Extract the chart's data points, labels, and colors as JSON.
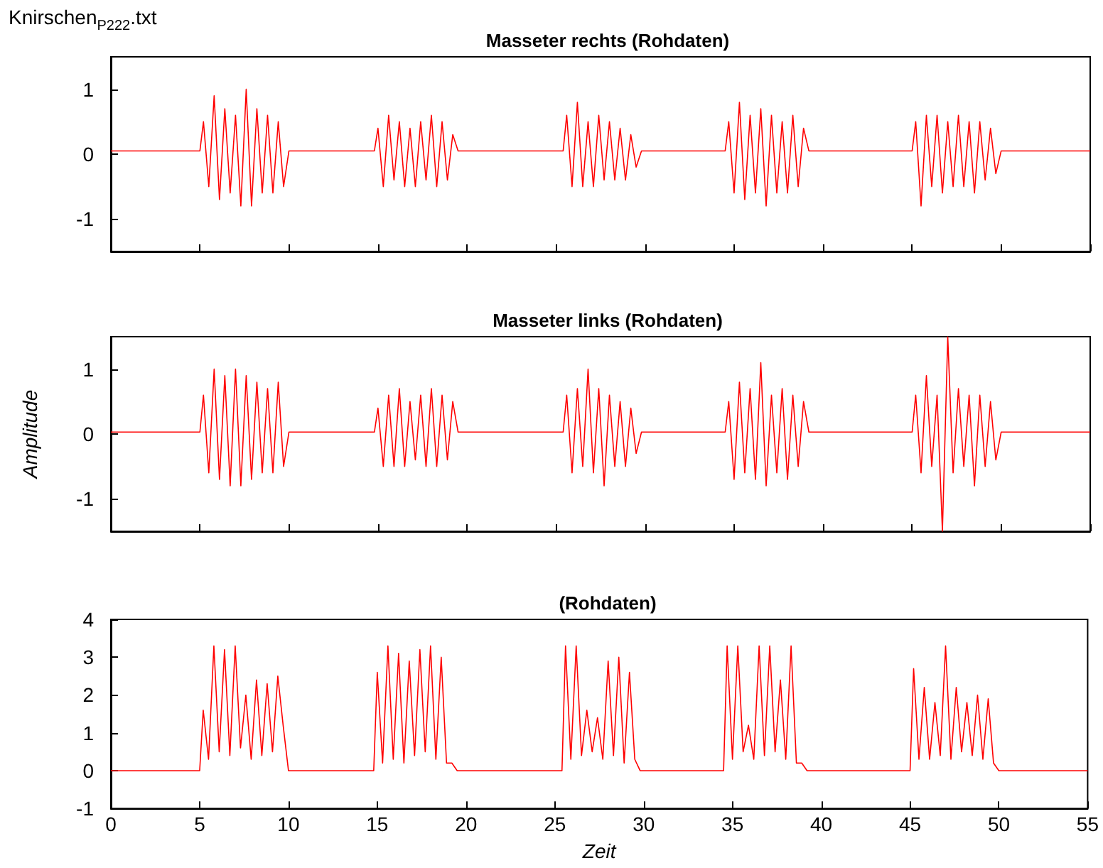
{
  "chart_data": [
    {
      "type": "line",
      "title": "Masseter rechts (Rohdaten)",
      "annotations": [
        "Knirschen$_{P222}$.txt"
      ],
      "xlim": [
        0,
        55
      ],
      "xticks": [
        0,
        5,
        10,
        15,
        20,
        25,
        30,
        35,
        40,
        45,
        50,
        55
      ],
      "ylim": [
        -1.5,
        1.5
      ],
      "yticks": [
        -1,
        0,
        1
      ],
      "tick_labels": "y",
      "series": [
        {
          "color": "#ff0000",
          "x": [
            0,
            2.5,
            5,
            5.2,
            5.5,
            5.8,
            6.1,
            6.4,
            6.7,
            7.0,
            7.3,
            7.6,
            7.9,
            8.2,
            8.5,
            8.8,
            9.1,
            9.4,
            9.7,
            10,
            12.5,
            14.8,
            15.0,
            15.3,
            15.6,
            15.9,
            16.2,
            16.5,
            16.8,
            17.1,
            17.4,
            17.7,
            18.0,
            18.3,
            18.6,
            18.9,
            19.2,
            19.5,
            22.5,
            25.4,
            25.6,
            25.9,
            26.2,
            26.5,
            26.8,
            27.1,
            27.4,
            27.7,
            28.0,
            28.3,
            28.6,
            28.9,
            29.2,
            29.5,
            29.8,
            32,
            34.5,
            34.7,
            35.0,
            35.3,
            35.6,
            35.9,
            36.2,
            36.5,
            36.8,
            37.1,
            37.4,
            37.7,
            38.0,
            38.3,
            38.6,
            38.9,
            39.2,
            42,
            45.0,
            45.2,
            45.5,
            45.8,
            46.1,
            46.4,
            46.7,
            47.0,
            47.3,
            47.6,
            47.9,
            48.2,
            48.5,
            48.8,
            49.1,
            49.4,
            49.7,
            50,
            55
          ],
          "values": [
            0.05,
            0.05,
            0.05,
            0.5,
            -0.5,
            0.9,
            -0.7,
            0.7,
            -0.6,
            0.6,
            -0.8,
            1.0,
            -0.8,
            0.7,
            -0.6,
            0.6,
            -0.6,
            0.5,
            -0.5,
            0.05,
            0.05,
            0.05,
            0.4,
            -0.5,
            0.6,
            -0.4,
            0.5,
            -0.5,
            0.4,
            -0.5,
            0.5,
            -0.4,
            0.6,
            -0.5,
            0.5,
            -0.4,
            0.3,
            0.05,
            0.05,
            0.05,
            0.6,
            -0.5,
            0.8,
            -0.5,
            0.5,
            -0.5,
            0.6,
            -0.4,
            0.5,
            -0.4,
            0.4,
            -0.4,
            0.3,
            -0.2,
            0.05,
            0.05,
            0.05,
            0.5,
            -0.6,
            0.8,
            -0.7,
            0.6,
            -0.6,
            0.7,
            -0.8,
            0.6,
            -0.6,
            0.5,
            -0.6,
            0.6,
            -0.5,
            0.4,
            0.05,
            0.05,
            0.05,
            0.5,
            -0.8,
            0.6,
            -0.5,
            0.6,
            -0.6,
            0.5,
            -0.5,
            0.6,
            -0.5,
            0.5,
            -0.6,
            0.5,
            -0.4,
            0.4,
            -0.3,
            0.05,
            0.05
          ]
        }
      ]
    },
    {
      "type": "line",
      "title": "Masseter links (Rohdaten)",
      "ylabel": "Amplitude",
      "xlim": [
        0,
        55
      ],
      "xticks": [
        0,
        5,
        10,
        15,
        20,
        25,
        30,
        35,
        40,
        45,
        50,
        55
      ],
      "ylim": [
        -1.5,
        1.5
      ],
      "yticks": [
        -1,
        0,
        1
      ],
      "tick_labels": "y",
      "series": [
        {
          "color": "#ff0000",
          "x": [
            0,
            2.5,
            5,
            5.2,
            5.5,
            5.8,
            6.1,
            6.4,
            6.7,
            7.0,
            7.3,
            7.6,
            7.9,
            8.2,
            8.5,
            8.8,
            9.1,
            9.4,
            9.7,
            10,
            12.5,
            14.8,
            15.0,
            15.3,
            15.6,
            15.9,
            16.2,
            16.5,
            16.8,
            17.1,
            17.4,
            17.7,
            18.0,
            18.3,
            18.6,
            18.9,
            19.2,
            19.5,
            22.5,
            25.4,
            25.6,
            25.9,
            26.2,
            26.5,
            26.8,
            27.1,
            27.4,
            27.7,
            28.0,
            28.3,
            28.6,
            28.9,
            29.2,
            29.5,
            29.8,
            32,
            34.5,
            34.7,
            35.0,
            35.3,
            35.6,
            35.9,
            36.2,
            36.5,
            36.8,
            37.1,
            37.4,
            37.7,
            38.0,
            38.3,
            38.6,
            38.9,
            39.2,
            42,
            45.0,
            45.2,
            45.5,
            45.8,
            46.1,
            46.4,
            46.7,
            47.0,
            47.3,
            47.6,
            47.9,
            48.2,
            48.5,
            48.8,
            49.1,
            49.4,
            49.7,
            50,
            55
          ],
          "values": [
            0.03,
            0.03,
            0.03,
            0.6,
            -0.6,
            1.0,
            -0.7,
            0.9,
            -0.8,
            1.0,
            -0.8,
            0.9,
            -0.7,
            0.8,
            -0.6,
            0.7,
            -0.6,
            0.8,
            -0.5,
            0.03,
            0.03,
            0.03,
            0.4,
            -0.5,
            0.6,
            -0.5,
            0.7,
            -0.5,
            0.5,
            -0.4,
            0.6,
            -0.5,
            0.7,
            -0.5,
            0.6,
            -0.4,
            0.5,
            0.03,
            0.03,
            0.03,
            0.6,
            -0.6,
            0.7,
            -0.5,
            1.0,
            -0.6,
            0.7,
            -0.8,
            0.6,
            -0.5,
            0.5,
            -0.5,
            0.4,
            -0.3,
            0.03,
            0.03,
            0.03,
            0.5,
            -0.7,
            0.8,
            -0.6,
            0.7,
            -0.7,
            1.1,
            -0.8,
            0.6,
            -0.6,
            0.7,
            -0.7,
            0.6,
            -0.5,
            0.5,
            0.03,
            0.03,
            0.03,
            0.6,
            -0.6,
            0.9,
            -0.5,
            0.6,
            -1.5,
            1.5,
            -0.6,
            0.7,
            -0.5,
            0.6,
            -0.8,
            0.6,
            -0.5,
            0.5,
            -0.4,
            0.03,
            0.03
          ]
        }
      ]
    },
    {
      "type": "line",
      "title": "(Rohdaten)",
      "xlabel": "Zeit",
      "xlim": [
        0,
        55
      ],
      "xticks": [
        0,
        5,
        10,
        15,
        20,
        25,
        30,
        35,
        40,
        45,
        50,
        55
      ],
      "ylim": [
        -1,
        4
      ],
      "yticks": [
        -1,
        0,
        1,
        2,
        3,
        4
      ],
      "series": [
        {
          "color": "#ff0000",
          "x": [
            0,
            2.5,
            5,
            5.2,
            5.5,
            5.8,
            6.1,
            6.4,
            6.7,
            7.0,
            7.3,
            7.6,
            7.9,
            8.2,
            8.5,
            8.8,
            9.1,
            9.4,
            9.7,
            10,
            12.5,
            14.8,
            15.0,
            15.3,
            15.6,
            15.9,
            16.2,
            16.5,
            16.8,
            17.1,
            17.4,
            17.7,
            18.0,
            18.3,
            18.6,
            18.9,
            19.2,
            19.5,
            22.5,
            25.4,
            25.6,
            25.9,
            26.2,
            26.5,
            26.8,
            27.1,
            27.4,
            27.7,
            28.0,
            28.3,
            28.6,
            28.9,
            29.2,
            29.5,
            29.8,
            32,
            34.5,
            34.7,
            35.0,
            35.3,
            35.6,
            35.9,
            36.2,
            36.5,
            36.8,
            37.1,
            37.4,
            37.7,
            38.0,
            38.3,
            38.6,
            38.9,
            39.2,
            42,
            45.0,
            45.2,
            45.5,
            45.8,
            46.1,
            46.4,
            46.7,
            47.0,
            47.3,
            47.6,
            47.9,
            48.2,
            48.5,
            48.8,
            49.1,
            49.4,
            49.7,
            50,
            55
          ],
          "values": [
            0,
            0,
            0,
            1.6,
            0.3,
            3.3,
            0.5,
            3.2,
            0.4,
            3.3,
            0.6,
            2.0,
            0.3,
            2.4,
            0.4,
            2.3,
            0.5,
            2.5,
            1.2,
            0,
            0,
            0,
            2.6,
            0.2,
            3.3,
            0.3,
            3.1,
            0.2,
            2.9,
            0.4,
            3.2,
            0.5,
            3.3,
            0.3,
            3.0,
            0.2,
            0.2,
            0,
            0,
            0,
            3.3,
            0.3,
            3.3,
            0.4,
            1.6,
            0.5,
            1.4,
            0.3,
            2.9,
            0.4,
            3.0,
            0.2,
            2.6,
            0.3,
            0,
            0,
            0,
            3.3,
            0.3,
            3.3,
            0.5,
            1.2,
            0.3,
            3.3,
            0.4,
            3.3,
            0.5,
            2.4,
            0.3,
            3.3,
            0.2,
            0.2,
            0,
            0,
            0,
            2.7,
            0.3,
            2.2,
            0.3,
            1.8,
            0.4,
            3.3,
            0.3,
            2.2,
            0.5,
            1.8,
            0.4,
            2.0,
            0.3,
            1.9,
            0.2,
            0,
            0
          ]
        }
      ]
    }
  ]
}
